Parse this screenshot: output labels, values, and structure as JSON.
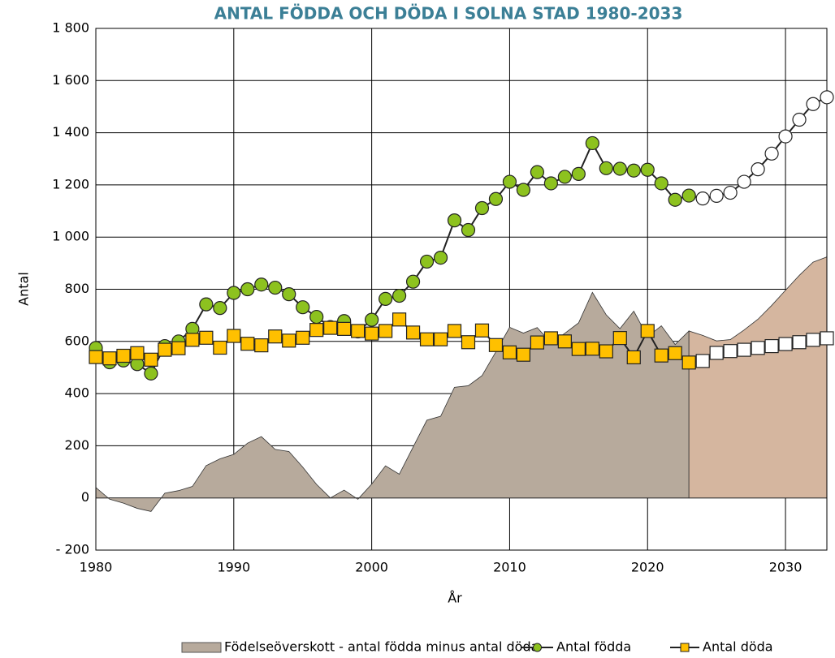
{
  "chart_data": {
    "type": "line",
    "title": "ANTAL FÖDDA OCH DÖDA I SOLNA STAD 1980-2033",
    "x_label": "År",
    "y_label": "Antal",
    "x": [
      1980,
      1981,
      1982,
      1983,
      1984,
      1985,
      1986,
      1987,
      1988,
      1989,
      1990,
      1991,
      1992,
      1993,
      1994,
      1995,
      1996,
      1997,
      1998,
      1999,
      2000,
      2001,
      2002,
      2003,
      2004,
      2005,
      2006,
      2007,
      2008,
      2009,
      2010,
      2011,
      2012,
      2013,
      2014,
      2015,
      2016,
      2017,
      2018,
      2019,
      2020,
      2021,
      2022,
      2023,
      2024,
      2025,
      2026,
      2027,
      2028,
      2029,
      2030,
      2031,
      2032,
      2033
    ],
    "series": [
      {
        "name": "Födelseöverskott - antal födda minus antal döda",
        "kind": "area",
        "color": "#b7aa9c",
        "forecast_color": "#d5b69f",
        "values": [
          40,
          -5,
          -20,
          -40,
          -52,
          18,
          28,
          44,
          124,
          150,
          167,
          210,
          235,
          186,
          178,
          118,
          52,
          0,
          30,
          -5,
          53,
          123,
          91,
          195,
          298,
          313,
          424,
          430,
          469,
          560,
          654,
          632,
          653,
          594,
          631,
          671,
          788,
          702,
          649,
          716,
          618,
          660,
          588,
          640,
          623,
          602,
          607,
          644,
          685,
          738,
          796,
          853,
          904,
          924
        ]
      },
      {
        "name": "Antal födda",
        "kind": "line",
        "marker": "circle",
        "color": "#8dc21f",
        "forecast_color": "#ffffff",
        "values": [
          575,
          520,
          527,
          513,
          477,
          582,
          600,
          648,
          742,
          728,
          786,
          800,
          818,
          806,
          781,
          731,
          694,
          655,
          678,
          638,
          683,
          763,
          775,
          829,
          906,
          921,
          1064,
          1027,
          1111,
          1146,
          1212,
          1181,
          1249,
          1206,
          1231,
          1242,
          1360,
          1264,
          1262,
          1255,
          1258,
          1206,
          1143,
          1159,
          1148,
          1158,
          1170,
          1212,
          1260,
          1320,
          1386,
          1450,
          1510,
          1536
        ]
      },
      {
        "name": "Antal döda",
        "kind": "line",
        "marker": "square",
        "color": "#ffc000",
        "forecast_color": "#ffffff",
        "values": [
          540,
          535,
          545,
          555,
          530,
          568,
          574,
          606,
          614,
          576,
          621,
          591,
          585,
          619,
          603,
          614,
          644,
          652,
          648,
          640,
          630,
          640,
          684,
          634,
          608,
          608,
          640,
          597,
          642,
          586,
          558,
          549,
          596,
          612,
          600,
          571,
          572,
          562,
          613,
          539,
          640,
          546,
          555,
          519,
          525,
          556,
          563,
          568,
          575,
          582,
          590,
          597,
          606,
          612
        ]
      }
    ],
    "forecast_from": 2023,
    "xlim": [
      1980,
      2033
    ],
    "xticks": [
      1980,
      1990,
      2000,
      2010,
      2020,
      2030
    ],
    "ylim": [
      -200,
      1800
    ],
    "yticks": [
      {
        "value": -200,
        "label": "- 200"
      },
      0,
      200,
      400,
      600,
      800,
      {
        "value": 1000,
        "label": "1 000"
      },
      {
        "value": 1200,
        "label": "1 200"
      },
      {
        "value": 1400,
        "label": "1 400"
      },
      {
        "value": 1600,
        "label": "1 600"
      },
      {
        "value": 1800,
        "label": "1 800"
      }
    ],
    "grid": true,
    "legend": "bottom"
  }
}
